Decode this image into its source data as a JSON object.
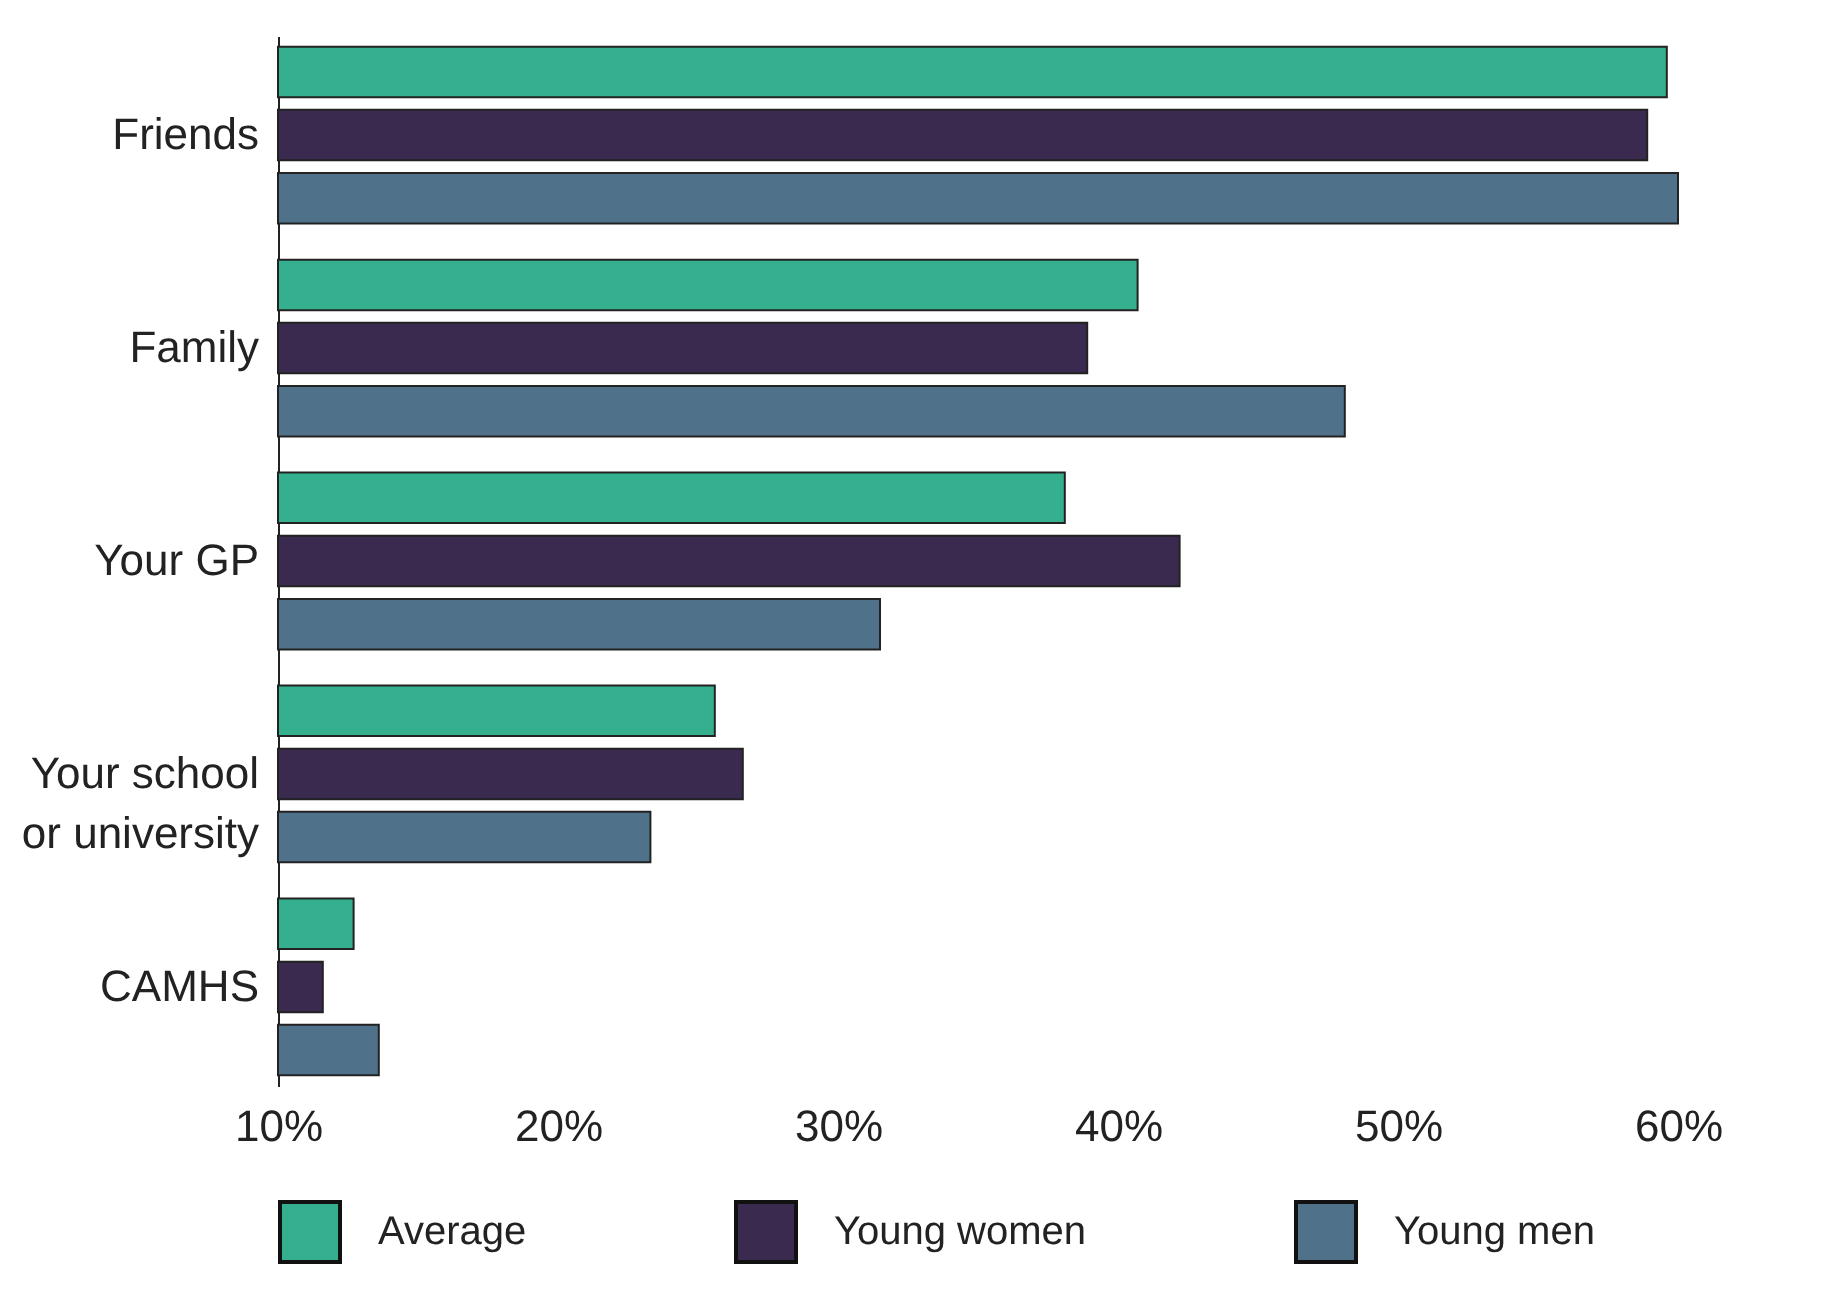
{
  "chart_data": {
    "type": "bar",
    "orientation": "horizontal",
    "categories": [
      "Friends",
      "Family",
      "Your GP",
      "Your school or university",
      "CAMHS"
    ],
    "series": [
      {
        "name": "Average",
        "color": "#35b08f",
        "values": [
          59.6,
          40.7,
          38.1,
          25.6,
          12.7
        ]
      },
      {
        "name": "Young women",
        "color": "#3b2a4f",
        "values": [
          58.9,
          38.9,
          42.2,
          26.6,
          11.6
        ]
      },
      {
        "name": "Young men",
        "color": "#4f728a",
        "values": [
          60.0,
          48.1,
          31.5,
          23.3,
          13.6
        ]
      }
    ],
    "xlim": [
      10,
      60
    ],
    "xticks": [
      {
        "value": 10,
        "label": "10%"
      },
      {
        "value": 20,
        "label": "20%"
      },
      {
        "value": 30,
        "label": "30%"
      },
      {
        "value": 40,
        "label": "40%"
      },
      {
        "value": 50,
        "label": "50%"
      },
      {
        "value": 60,
        "label": "60%"
      }
    ],
    "grid": false,
    "legend": "bottom"
  }
}
